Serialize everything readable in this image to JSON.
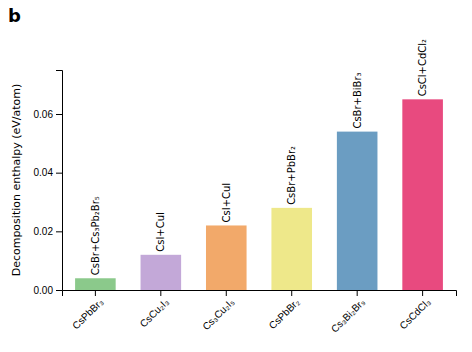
{
  "chart_data": {
    "type": "bar",
    "title": "b",
    "ylabel": "Decomposition enthalpy (eV/atom)",
    "categories": [
      "CsPbBr₃",
      "CsCu₂I₃",
      "Cs₃Cu₂I₅",
      "CsPbBr₂",
      "Cs₃Bi₂Br₉",
      "CsCdCl₃"
    ],
    "values": [
      0.004,
      0.012,
      0.022,
      0.028,
      0.054,
      0.065
    ],
    "annotations": [
      "CsBr+Cs₃Pb₂Br₅",
      "CsI+CuI",
      "CsI+CuI",
      "CsBr+PbBr₂",
      "CsBr+BiBr₃",
      "CsCl+CdCl₂"
    ],
    "colors": [
      "#8BC98B",
      "#C3A8D8",
      "#F2A96A",
      "#EEE88A",
      "#6B9DC2",
      "#E84A7F"
    ],
    "ylim": [
      0,
      0.075
    ],
    "yticks": [
      {
        "value": 0,
        "label": "0.00"
      },
      0.02,
      0.04,
      0.06
    ],
    "grid": false
  }
}
